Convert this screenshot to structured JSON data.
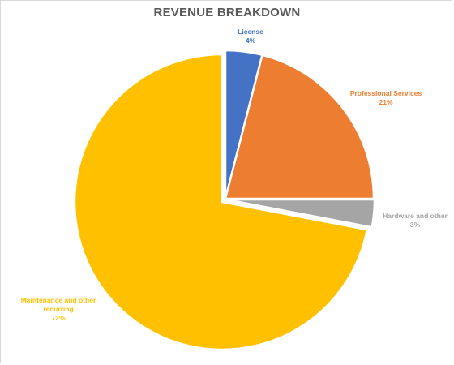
{
  "chart_data": {
    "type": "pie",
    "title": "REVENUE BREAKDOWN",
    "categories": [
      "License",
      "Professional Services",
      "Hardware and other",
      "Maintenance and other recurring"
    ],
    "values": [
      4,
      21,
      3,
      72
    ],
    "value_labels": [
      "4%",
      "21%",
      "3%",
      "72%"
    ],
    "colors": [
      "#4472C4",
      "#ED7D31",
      "#A5A5A5",
      "#FFC000"
    ],
    "exploded": true,
    "legend": "none"
  }
}
